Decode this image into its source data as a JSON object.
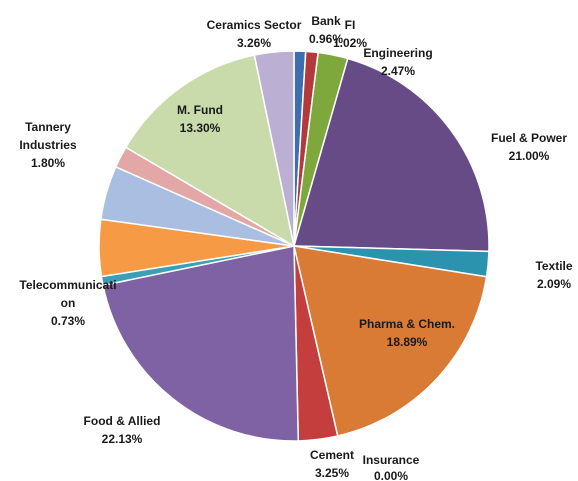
{
  "chart_data": {
    "type": "pie",
    "title": "",
    "start_angle_deg": 0,
    "direction": "clockwise",
    "slices": [
      {
        "label": "Bank",
        "value_label": "0.96%",
        "value": 0.96,
        "color": "#3d6fb0"
      },
      {
        "label": "FI",
        "value_label": "1.02%",
        "value": 1.02,
        "color": "#b23a3a"
      },
      {
        "label": "Engineering",
        "value_label": "2.47%",
        "value": 2.47,
        "color": "#7ea83c"
      },
      {
        "label": "Fuel & Power",
        "value_label": "21.00%",
        "value": 21.0,
        "color": "#664b86"
      },
      {
        "label": "Textile",
        "value_label": "2.09%",
        "value": 2.09,
        "color": "#2b93ad"
      },
      {
        "label": "Pharma & Chem.",
        "value_label": "18.89%",
        "value": 18.89,
        "color": "#d97b35"
      },
      {
        "label": "Insurance",
        "value_label": "0.00%",
        "value": 0.0,
        "color": "#4a6fa5"
      },
      {
        "label": "Cement",
        "value_label": "3.25%",
        "value": 3.25,
        "color": "#c43e3e"
      },
      {
        "label": "Food & Allied",
        "value_label": "22.13%",
        "value": 22.13,
        "color": "#7f62a3"
      },
      {
        "label": "Telecommunication",
        "value_label": "0.73%",
        "value": 0.73,
        "color": "#3aa0b8"
      },
      {
        "label": "",
        "value_label": "",
        "value": 4.7,
        "color": "#f79a46"
      },
      {
        "label": "",
        "value_label": "",
        "value": 4.46,
        "color": "#a9bee0"
      },
      {
        "label": "Tannery Industries",
        "value_label": "1.80%",
        "value": 1.8,
        "color": "#e3a7a6"
      },
      {
        "label": "M. Fund",
        "value_label": "13.30%",
        "value": 13.3,
        "color": "#c9dbab"
      },
      {
        "label": "Ceramics Sector",
        "value_label": "3.26%",
        "value": 3.26,
        "color": "#bbb0d3"
      }
    ]
  },
  "labels": {
    "bank": {
      "name": "Bank",
      "value": "0.96%"
    },
    "fi": {
      "name": "FI",
      "value": "1.02%"
    },
    "engineering": {
      "name": "Engineering",
      "value": "2.47%"
    },
    "fuel": {
      "name": "Fuel & Power",
      "value": "21.00%"
    },
    "textile": {
      "name": "Textile",
      "value": "2.09%"
    },
    "pharma": {
      "name": "Pharma & Chem.",
      "value": "18.89%"
    },
    "insurance": {
      "name": "Insurance",
      "value": "0.00%"
    },
    "cement": {
      "name": "Cement",
      "value": "3.25%"
    },
    "food": {
      "name": "Food & Allied",
      "value": "22.13%"
    },
    "telecom": {
      "line1": "Telecommunicati",
      "line2": "on",
      "value": "0.73%"
    },
    "tannery": {
      "line1": "Tannery",
      "line2": "Industries",
      "value": "1.80%"
    },
    "mfund": {
      "name": "M. Fund",
      "value": "13.30%"
    },
    "ceramics": {
      "name": "Ceramics Sector",
      "value": "3.26%"
    }
  }
}
